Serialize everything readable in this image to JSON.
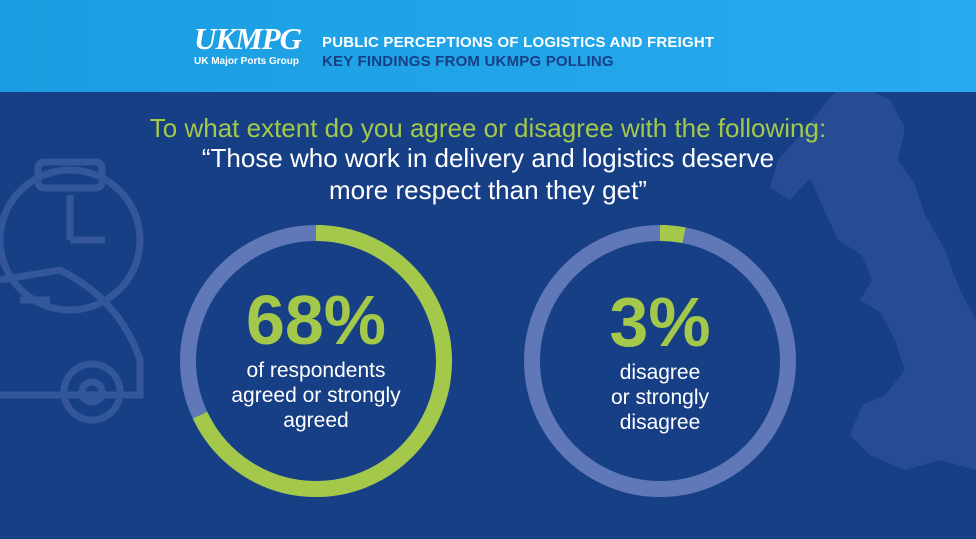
{
  "header": {
    "logo_text": "UKMPG",
    "logo_caption": "UK Major Ports Group",
    "title": "PUBLIC PERCEPTIONS OF LOGISTICS AND FREIGHT",
    "subtitle": "KEY FINDINGS FROM UKMPG POLLING"
  },
  "question": {
    "prompt": "To what extent do you agree or disagree with the following:",
    "quote_line1": "“Those who work in delivery and logistics deserve",
    "quote_line2": "more respect than they get”"
  },
  "stats": [
    {
      "value": "68%",
      "fraction": 0.68,
      "label_lines": [
        "of respondents",
        "agreed or strongly",
        "agreed"
      ]
    },
    {
      "value": "3%",
      "fraction": 0.03,
      "label_lines": [
        "disagree",
        "or strongly",
        "disagree"
      ]
    }
  ],
  "colors": {
    "background": "#173f85",
    "header": "#1a9de0",
    "accent": "#a4c94a",
    "ring_track": "#6178b8",
    "text": "#ffffff"
  },
  "icons": [
    "stopwatch-icon",
    "delivery-van-icon",
    "uk-map-icon"
  ]
}
